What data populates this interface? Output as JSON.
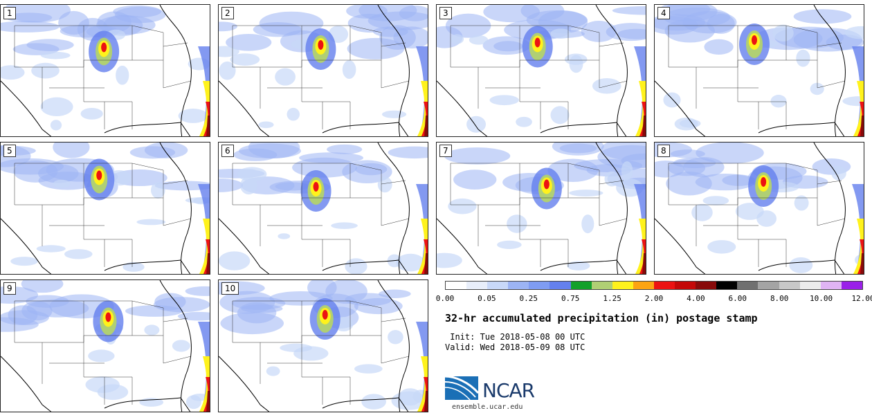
{
  "panels": [
    {
      "label": "1"
    },
    {
      "label": "2"
    },
    {
      "label": "3"
    },
    {
      "label": "4"
    },
    {
      "label": "5"
    },
    {
      "label": "6"
    },
    {
      "label": "7"
    },
    {
      "label": "8"
    },
    {
      "label": "9"
    },
    {
      "label": "10"
    }
  ],
  "colorbar": {
    "colors": [
      "#ffffff",
      "#e8eefa",
      "#c8d8f8",
      "#9cb4f4",
      "#7f9cf2",
      "#6480ee",
      "#12a12a",
      "#b0cf74",
      "#fff21c",
      "#fca412",
      "#ec1212",
      "#c40808",
      "#880a0a",
      "#000000",
      "#707070",
      "#a4a4a4",
      "#c8c8c8",
      "#ececec",
      "#e0b4f4",
      "#9a20e8"
    ],
    "tick_labels": [
      "0.00",
      "0.05",
      "0.25",
      "0.75",
      "1.25",
      "2.00",
      "4.00",
      "6.00",
      "8.00",
      "10.00",
      "12.00"
    ]
  },
  "title": "32-hr accumulated precipitation (in) postage stamp",
  "init_line": " Init: Tue 2018-05-08 00 UTC",
  "valid_line": "Valid: Wed 2018-05-09 08 UTC",
  "logo_text": "NCAR",
  "website": "ensemble.ucar.edu"
}
